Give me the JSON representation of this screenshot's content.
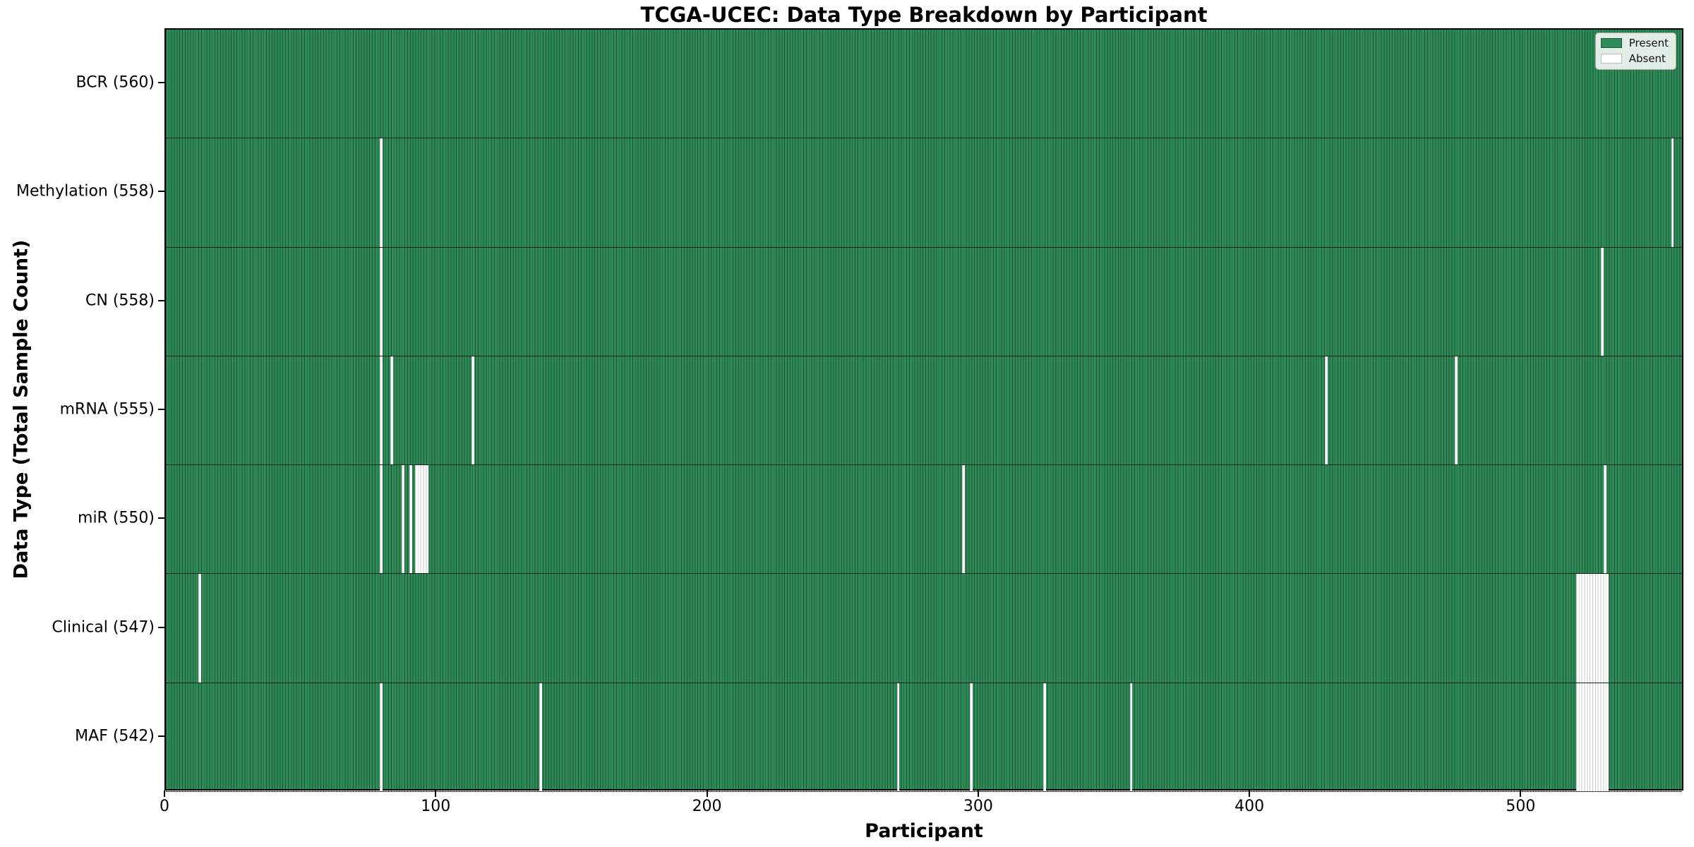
{
  "title": "TCGA-UCEC: Data Type Breakdown by Participant",
  "xlabel": "Participant",
  "ylabel": "Data Type (Total Sample Count)",
  "legend": {
    "present_label": "Present",
    "absent_label": "Absent"
  },
  "colors": {
    "present": "#2e8b57",
    "absent": "#ffffff",
    "bar_edge": "#0a2618",
    "axis": "#000000",
    "legend_border": "#a8aaa8"
  },
  "chart_data": {
    "type": "heatmap",
    "title": "TCGA-UCEC: Data Type Breakdown by Participant",
    "xlabel": "Participant",
    "ylabel": "Data Type (Total Sample Count)",
    "legend_entries": [
      "Present",
      "Absent"
    ],
    "legend_position": "upper right",
    "grid": false,
    "n_participants": 560,
    "xlim": [
      0,
      560
    ],
    "x_ticks": [
      0,
      100,
      200,
      300,
      400,
      500
    ],
    "rows": [
      {
        "name": "BCR",
        "label": "BCR (560)",
        "total": 560,
        "absent_count": 0,
        "absent_participants": []
      },
      {
        "name": "Methylation",
        "label": "Methylation (558)",
        "total": 558,
        "absent_count": 2,
        "absent_participants": [
          79,
          556
        ]
      },
      {
        "name": "CN",
        "label": "CN (558)",
        "total": 558,
        "absent_count": 2,
        "absent_participants": [
          79,
          530
        ]
      },
      {
        "name": "mRNA",
        "label": "mRNA (555)",
        "total": 555,
        "absent_count": 5,
        "absent_participants": [
          79,
          83,
          113,
          428,
          476
        ]
      },
      {
        "name": "miR",
        "label": "miR (550)",
        "total": 550,
        "absent_count": 10,
        "absent_participants": [
          79,
          87,
          90,
          92,
          93,
          94,
          95,
          96,
          294,
          531
        ]
      },
      {
        "name": "Clinical",
        "label": "Clinical (547)",
        "total": 547,
        "absent_count": 13,
        "absent_participants": [
          12,
          521,
          522,
          523,
          524,
          525,
          526,
          527,
          528,
          529,
          530,
          531,
          532
        ]
      },
      {
        "name": "MAF",
        "label": "MAF (542)",
        "total": 542,
        "absent_count": 18,
        "absent_participants": [
          79,
          138,
          270,
          297,
          324,
          356,
          521,
          522,
          523,
          524,
          525,
          526,
          527,
          528,
          529,
          530,
          531,
          532
        ]
      }
    ]
  }
}
